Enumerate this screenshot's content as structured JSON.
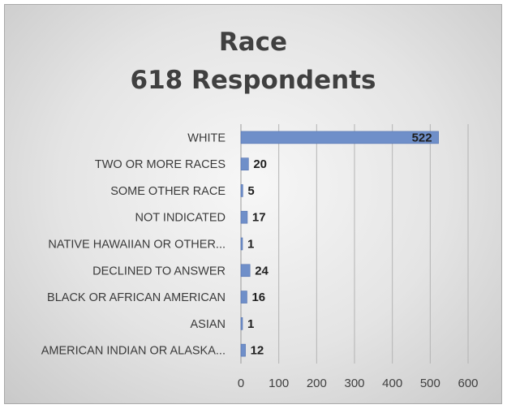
{
  "chart_data": {
    "type": "bar",
    "orientation": "horizontal",
    "title": "Race",
    "subtitle": "618 Respondents",
    "categories": [
      "WHITE",
      "TWO OR MORE RACES",
      "SOME OTHER RACE",
      "NOT INDICATED",
      "NATIVE HAWAIIAN OR OTHER...",
      "DECLINED TO ANSWER",
      "BLACK OR AFRICAN AMERICAN",
      "ASIAN",
      "AMERICAN INDIAN OR ALASKA..."
    ],
    "values": [
      522,
      20,
      5,
      17,
      1,
      24,
      16,
      1,
      12
    ],
    "xlim": [
      0,
      600
    ],
    "xticks": [
      0,
      100,
      200,
      300,
      400,
      500,
      600
    ],
    "grid": "vertical",
    "legend": "none",
    "bar_color": "#6f8fc9",
    "bar_edge_color": "#5673b0",
    "label_color": "#1f1f1f"
  }
}
